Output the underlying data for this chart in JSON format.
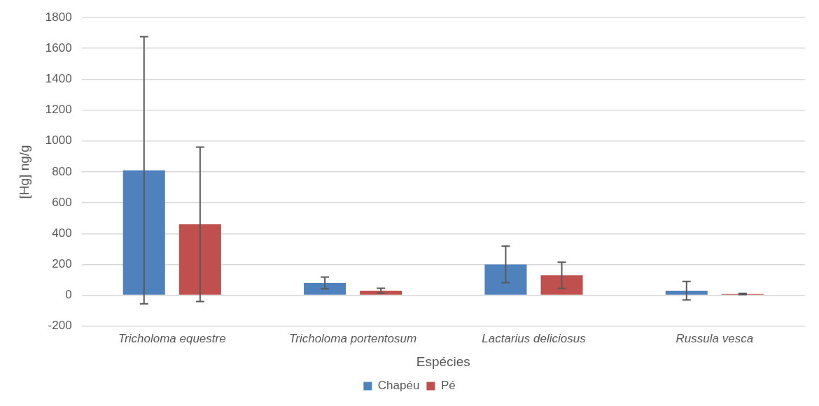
{
  "chart_data": {
    "type": "bar",
    "xlabel": "Espécies",
    "ylabel": "[Hg] ng/g",
    "categories": [
      "Tricholoma equestre",
      "Tricholoma portentosum",
      "Lactarius deliciosus",
      "Russula vesca"
    ],
    "series": [
      {
        "name": "Chapéu",
        "color": "#4f81bd",
        "values": [
          810,
          80,
          200,
          30
        ],
        "errors": [
          865,
          38,
          118,
          60
        ]
      },
      {
        "name": "Pé",
        "color": "#c0504d",
        "values": [
          460,
          30,
          130,
          9
        ],
        "errors": [
          500,
          16,
          85,
          4
        ]
      }
    ],
    "ylim": [
      -200,
      1800
    ],
    "yticks": [
      -200,
      0,
      200,
      400,
      600,
      800,
      1000,
      1200,
      1400,
      1600,
      1800
    ],
    "grid": "y",
    "legend": "bottom"
  }
}
